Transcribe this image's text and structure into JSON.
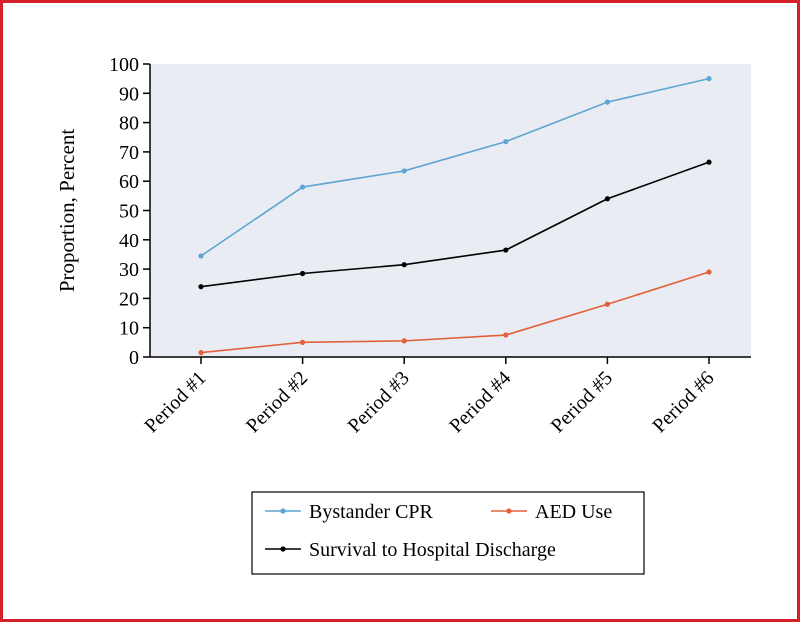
{
  "chart_data": {
    "type": "line",
    "title": "",
    "xlabel": "",
    "ylabel": "Proportion, Percent",
    "categories": [
      "Period #1",
      "Period #2",
      "Period #3",
      "Period #4",
      "Period #5",
      "Period #6"
    ],
    "ylim": [
      0,
      100
    ],
    "yticks": [
      0,
      10,
      20,
      30,
      40,
      50,
      60,
      70,
      80,
      90,
      100
    ],
    "grid": false,
    "legend_position": "bottom",
    "plot_background": "#e9ecf2",
    "series": [
      {
        "name": "Bystander CPR",
        "color": "#5fa5d3",
        "values": [
          34.5,
          58,
          63.5,
          73.5,
          87,
          95
        ]
      },
      {
        "name": "AED Use",
        "color": "#e2603a",
        "values": [
          1.5,
          5,
          5.5,
          7.5,
          18,
          29
        ]
      },
      {
        "name": "Survival to Hospital Discharge",
        "color": "#000000",
        "values": [
          24,
          28.5,
          31.5,
          36.5,
          54,
          66.5
        ]
      }
    ]
  }
}
